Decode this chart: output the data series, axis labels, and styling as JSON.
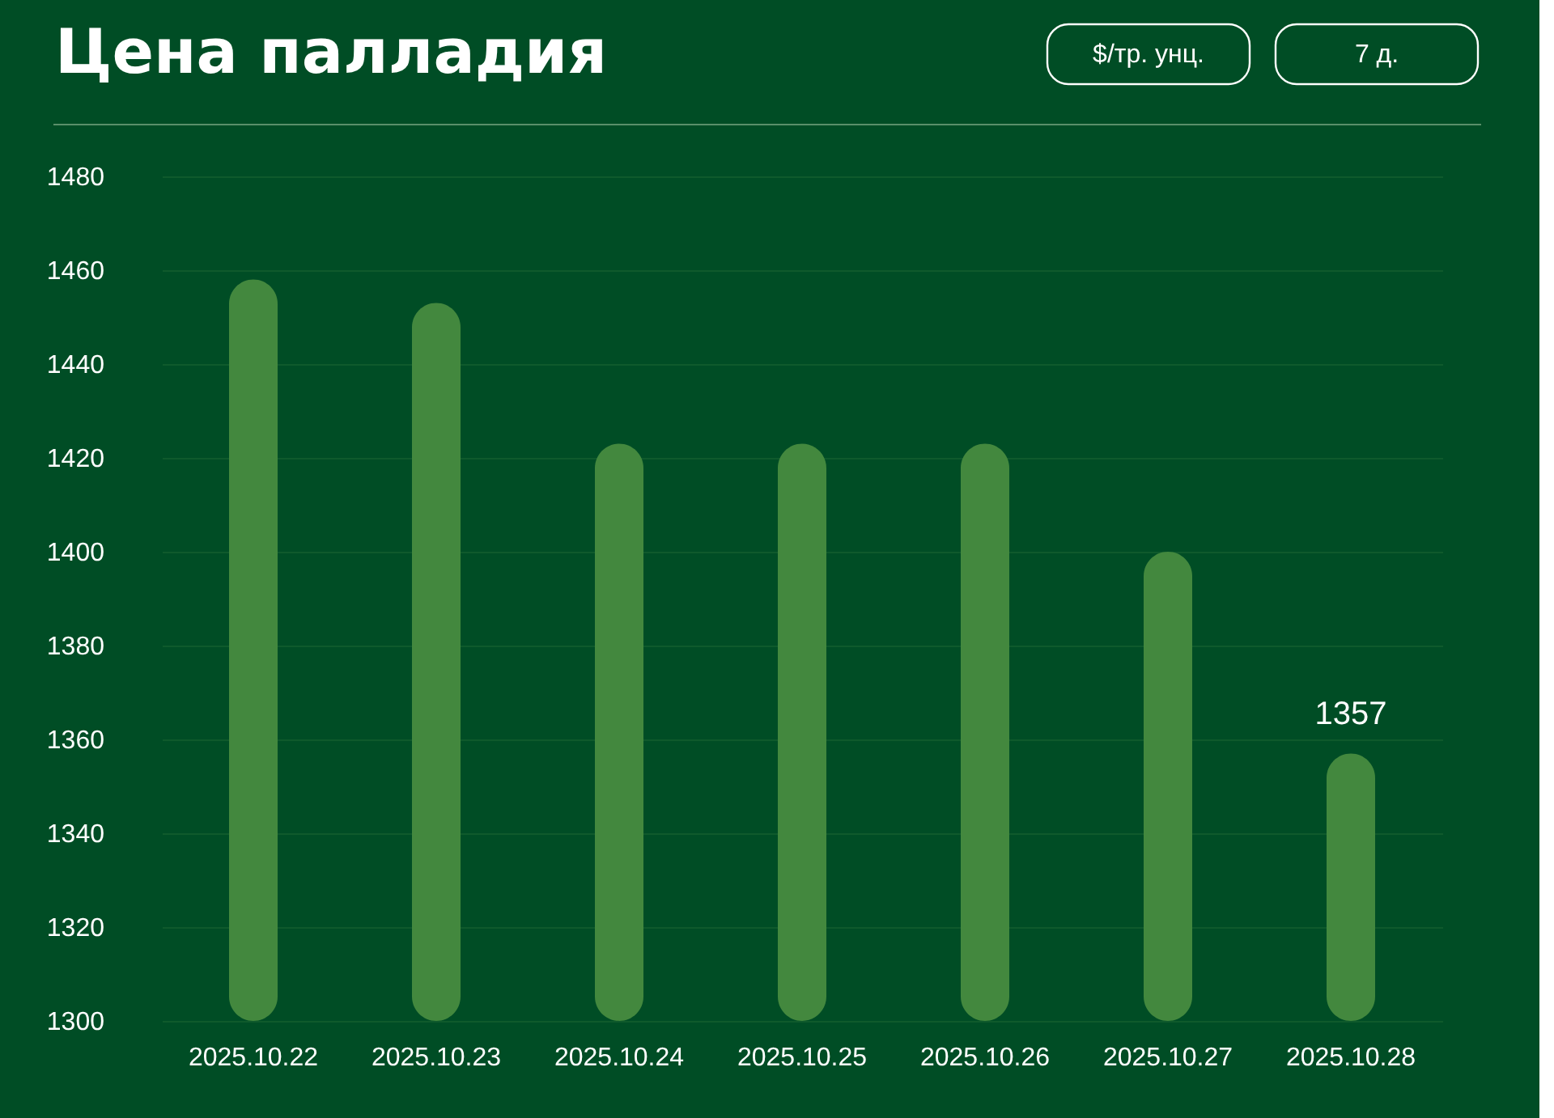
{
  "chart_data": {
    "type": "bar",
    "title": "Цена палладия",
    "annotations": [
      "$/тр. унц.",
      "7 д."
    ],
    "categories": [
      "2025.10.22",
      "2025.10.23",
      "2025.10.24",
      "2025.10.25",
      "2025.10.26",
      "2025.10.27",
      "2025.10.28"
    ],
    "values": [
      1458,
      1453,
      1423,
      1423,
      1423,
      1400,
      1357
    ],
    "value_labels": [
      null,
      null,
      null,
      null,
      null,
      null,
      "1357"
    ],
    "color": "#43883e",
    "ylim": [
      1300,
      1480
    ],
    "yticks": [
      1300,
      1320,
      1340,
      1360,
      1380,
      1400,
      1420,
      1440,
      1460,
      1480
    ],
    "grid": "y"
  }
}
